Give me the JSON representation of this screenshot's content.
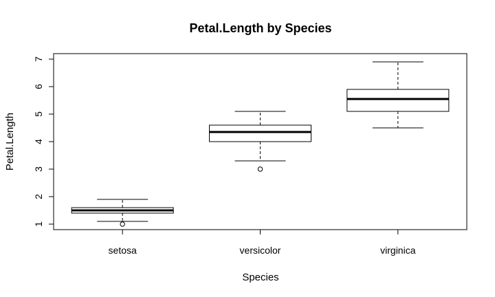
{
  "chart_data": {
    "type": "box",
    "title": "Petal.Length by Species",
    "xlabel": "Species",
    "ylabel": "Petal.Length",
    "ylim": [
      0.8,
      7.2
    ],
    "y_ticks": [
      1,
      2,
      3,
      4,
      5,
      6,
      7
    ],
    "grid": false,
    "legend": "none",
    "categories": [
      "setosa",
      "versicolor",
      "virginica"
    ],
    "boxes": [
      {
        "category": "setosa",
        "whisker_low": 1.1,
        "q1": 1.4,
        "median": 1.5,
        "q3": 1.6,
        "whisker_high": 1.9,
        "outliers": [
          1.0
        ]
      },
      {
        "category": "versicolor",
        "whisker_low": 3.3,
        "q1": 4.0,
        "median": 4.35,
        "q3": 4.6,
        "whisker_high": 5.1,
        "outliers": [
          3.0
        ]
      },
      {
        "category": "virginica",
        "whisker_low": 4.5,
        "q1": 5.1,
        "median": 5.55,
        "q3": 5.9,
        "whisker_high": 6.9,
        "outliers": []
      }
    ]
  }
}
